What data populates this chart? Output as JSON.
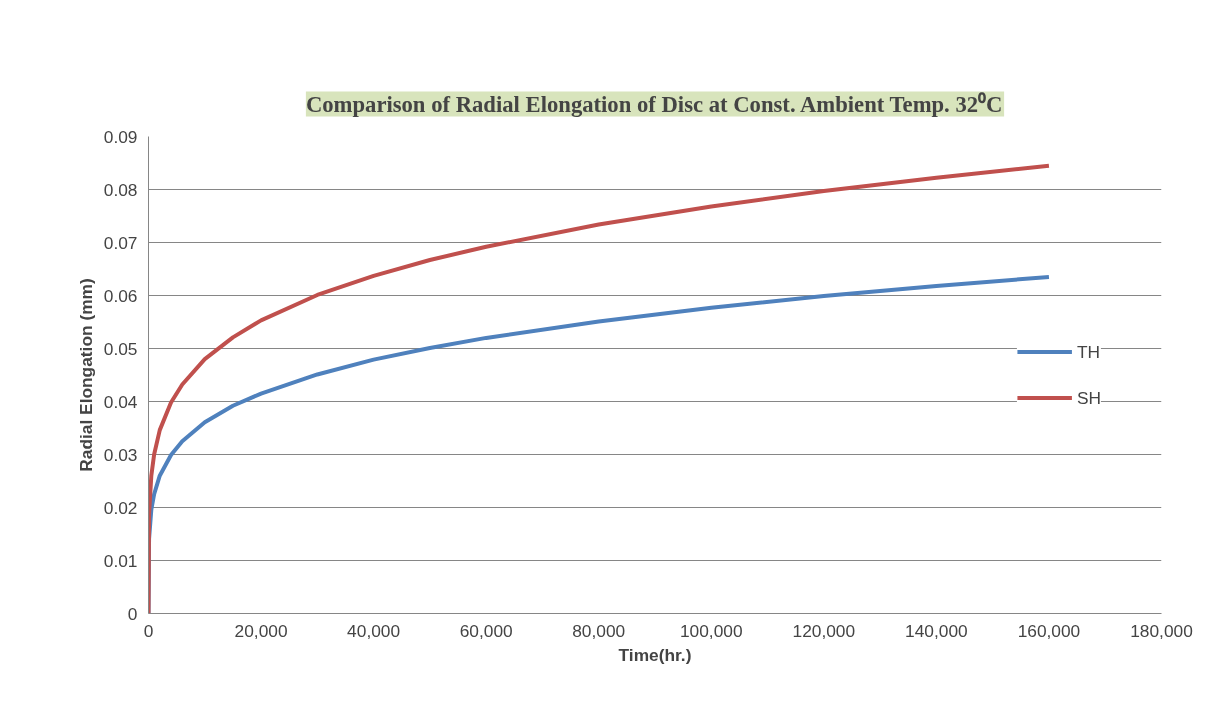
{
  "chart_data": {
    "type": "line",
    "title": "Comparison of Radial Elongation of Disc at Const. Ambient Temp. 32⁰C",
    "xlabel": "Time(hr.)",
    "ylabel": "Radial Elongation (mm)",
    "x": [
      0,
      100,
      500,
      1000,
      2000,
      4000,
      6000,
      10000,
      15000,
      20000,
      30000,
      40000,
      50000,
      60000,
      80000,
      100000,
      120000,
      140000,
      160000
    ],
    "series": [
      {
        "name": "TH",
        "color": "#4f81bd",
        "values": [
          0,
          0.0141,
          0.0196,
          0.0225,
          0.026,
          0.0299,
          0.0325,
          0.0361,
          0.0392,
          0.0415,
          0.0451,
          0.0479,
          0.0501,
          0.052,
          0.0551,
          0.0577,
          0.0599,
          0.0618,
          0.0635
        ]
      },
      {
        "name": "SH",
        "color": "#c0504d",
        "values": [
          0,
          0.0188,
          0.026,
          0.03,
          0.0346,
          0.0398,
          0.0432,
          0.048,
          0.0521,
          0.0553,
          0.0601,
          0.0637,
          0.0667,
          0.0692,
          0.0734,
          0.0768,
          0.0797,
          0.0822,
          0.0845
        ]
      }
    ],
    "xlim": [
      0,
      180000
    ],
    "ylim": [
      0,
      0.09
    ],
    "xticks": [
      0,
      {
        "value": 20000,
        "label": "20,000"
      },
      {
        "value": 40000,
        "label": "40,000"
      },
      {
        "value": 60000,
        "label": "60,000"
      },
      {
        "value": 80000,
        "label": "80,000"
      },
      {
        "value": 100000,
        "label": "100,000"
      },
      {
        "value": 120000,
        "label": "120,000"
      },
      {
        "value": 140000,
        "label": "140,000"
      },
      {
        "value": 160000,
        "label": "160,000"
      },
      {
        "value": 180000,
        "label": "180,000"
      }
    ],
    "yticks": [
      0,
      0.01,
      0.02,
      0.03,
      0.04,
      0.05,
      0.06,
      0.07,
      0.08,
      0.09
    ],
    "grid": "y",
    "legend": "right",
    "marker": "none",
    "line_style": "solid"
  }
}
